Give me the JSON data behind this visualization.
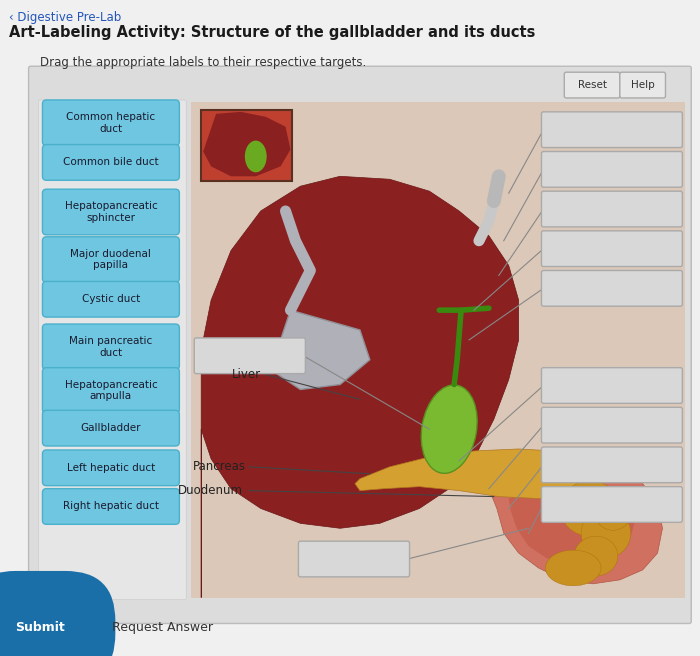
{
  "title": "Art-Labeling Activity: Structure of the gallbladder and its ducts",
  "subtitle": "‹ Digestive Pre-Lab",
  "instruction": "Drag the appropriate labels to their respective targets.",
  "bg_color": "#f0f0f0",
  "panel_bg": "#e2e2e2",
  "label_bg": "#6ec6e0",
  "label_text_color": "#1a1a2e",
  "label_border": "#4ab0cc",
  "labels": [
    "Common hepatic\nduct",
    "Common bile duct",
    "Hepatopancreatic\nsphincter",
    "Major duodenal\npapilla",
    "Cystic duct",
    "Main pancreatic\nduct",
    "Hepatopancreatic\nampulla",
    "Gallbladder",
    "Left hepatic duct",
    "Right hepatic duct"
  ],
  "submit_color": "#1a6fa8",
  "title_color": "#1a1a1a",
  "subtitle_color": "#2255bb"
}
